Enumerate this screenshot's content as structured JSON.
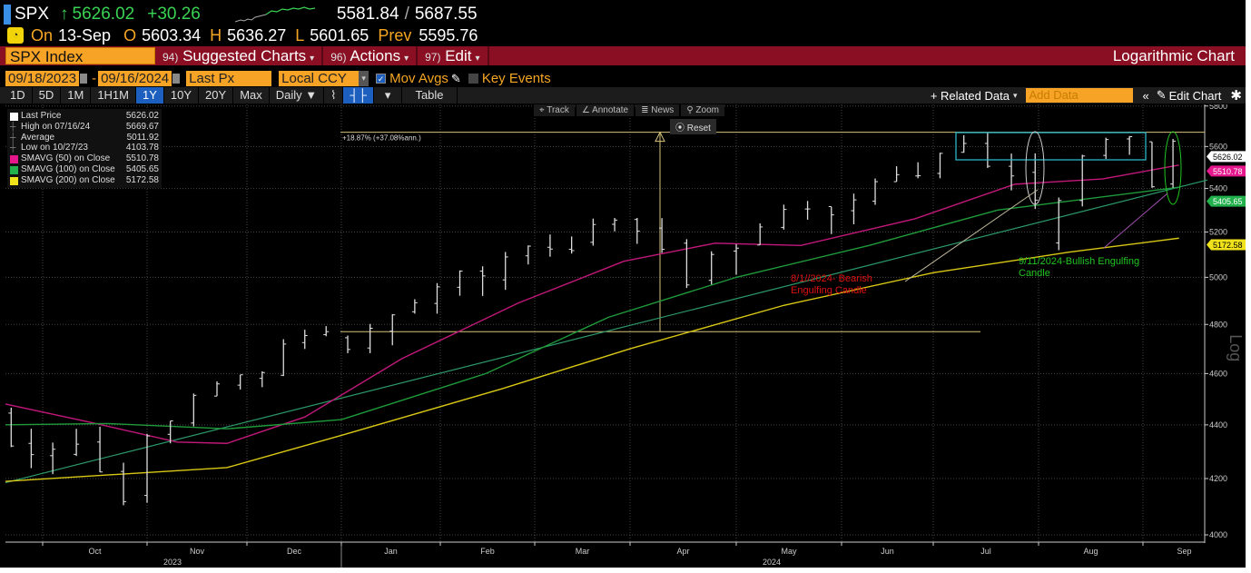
{
  "quote": {
    "symbol": "SPX",
    "last": "5626.02",
    "arrow": "↑",
    "change": "+30.26",
    "range_low": "5581.84",
    "range_sep": "/",
    "range_high": "5687.55",
    "on_label": "On",
    "date": "13-Sep",
    "open_label": "O",
    "open": "5603.34",
    "high_label": "H",
    "high": "5636.27",
    "low_label": "L",
    "low": "5601.65",
    "prev_label": "Prev",
    "prev": "5595.76"
  },
  "menubar": {
    "ticker": "SPX Index",
    "items": [
      {
        "num": "94)",
        "label": "Suggested Charts"
      },
      {
        "num": "96)",
        "label": "Actions"
      },
      {
        "num": "97)",
        "label": "Edit"
      }
    ],
    "title": "Logarithmic Chart"
  },
  "params": {
    "start": "09/18/2023",
    "dash": "-",
    "end": "09/16/2024",
    "field": "Last Px",
    "currency": "Local CCY",
    "mov_avgs": "Mov Avgs",
    "key_events": "Key Events"
  },
  "toolbar": {
    "periods": [
      "1D",
      "5D",
      "1M",
      "1H1M",
      "1Y",
      "10Y",
      "20Y",
      "Max"
    ],
    "selected": "1Y",
    "frequency": "Daily ▼",
    "table": "Table",
    "related": "+ Related Data",
    "add_data_placeholder": "Add Data",
    "edit_chart": "Edit Chart"
  },
  "chart_controls": {
    "track": "Track",
    "annotate": "Annotate",
    "news": "News",
    "zoom": "Zoom",
    "reset": "Reset"
  },
  "legend": [
    {
      "label": "Last Price",
      "value": "5626.02",
      "color": "#ffffff"
    },
    {
      "label": "High on 07/16/24",
      "value": "5669.67",
      "color": ""
    },
    {
      "label": "Average",
      "value": "5011.92",
      "color": ""
    },
    {
      "label": "Low on 10/27/23",
      "value": "4103.78",
      "color": ""
    },
    {
      "label": "SMAVG (50)  on Close",
      "value": "5510.78",
      "color": "#e6178c"
    },
    {
      "label": "SMAVG (100)  on Close",
      "value": "5405.65",
      "color": "#22b14c"
    },
    {
      "label": "SMAVG (200)  on Close",
      "value": "5172.58",
      "color": "#f0e21b"
    }
  ],
  "chart_data": {
    "type": "ohlc",
    "scale": "log",
    "ylim": [
      4000,
      5800
    ],
    "yticks": [
      4000,
      4200,
      4400,
      4600,
      4800,
      5000,
      5200,
      5400,
      5600,
      5800
    ],
    "axis_label": "Log",
    "months": [
      "Oct",
      "Nov",
      "Dec",
      "Jan",
      "Feb",
      "Mar",
      "Apr",
      "May",
      "Jun",
      "Jul",
      "Aug",
      "Sep"
    ],
    "years": [
      "2023",
      "2024"
    ],
    "grid": true,
    "bars_weekly": [
      [
        "2023-09-20",
        4445,
        4466,
        4316,
        4320
      ],
      [
        "2023-09-27",
        4330,
        4385,
        4238,
        4288
      ],
      [
        "2023-10-04",
        4284,
        4333,
        4216,
        4308
      ],
      [
        "2023-10-11",
        4289,
        4385,
        4283,
        4327
      ],
      [
        "2023-10-18",
        4335,
        4393,
        4223,
        4224
      ],
      [
        "2023-10-25",
        4226,
        4258,
        4104,
        4117
      ],
      [
        "2023-11-01",
        4139,
        4366,
        4113,
        4358
      ],
      [
        "2023-11-08",
        4364,
        4415,
        4330,
        4415
      ],
      [
        "2023-11-15",
        4407,
        4521,
        4394,
        4514
      ],
      [
        "2023-11-22",
        4511,
        4569,
        4511,
        4559
      ],
      [
        "2023-11-29",
        4554,
        4595,
        4537,
        4595
      ],
      [
        "2023-12-06",
        4581,
        4609,
        4546,
        4604
      ],
      [
        "2023-12-13",
        4593,
        4739,
        4590,
        4719
      ],
      [
        "2023-12-20",
        4725,
        4778,
        4699,
        4754
      ],
      [
        "2023-12-27",
        4758,
        4793,
        4751,
        4770
      ],
      [
        "2024-01-03",
        4745,
        4754,
        4682,
        4697
      ],
      [
        "2024-01-10",
        4703,
        4802,
        4682,
        4784
      ],
      [
        "2024-01-17",
        4772,
        4843,
        4714,
        4840
      ],
      [
        "2024-01-24",
        4853,
        4906,
        4845,
        4891
      ],
      [
        "2024-01-31",
        4888,
        4975,
        4845,
        4959
      ],
      [
        "2024-02-07",
        4957,
        5030,
        4921,
        5027
      ],
      [
        "2024-02-14",
        5027,
        5048,
        4920,
        5006
      ],
      [
        "2024-02-21",
        4989,
        5111,
        4946,
        5089
      ],
      [
        "2024-02-28",
        5094,
        5140,
        5056,
        5137
      ],
      [
        "2024-03-06",
        5132,
        5189,
        5090,
        5124
      ],
      [
        "2024-03-13",
        5123,
        5180,
        5104,
        5117
      ],
      [
        "2024-03-20",
        5154,
        5261,
        5139,
        5234
      ],
      [
        "2024-03-27",
        5235,
        5264,
        5203,
        5254
      ],
      [
        "2024-04-03",
        5257,
        5264,
        5147,
        5204
      ],
      [
        "2024-04-10",
        5218,
        5263,
        5107,
        5123
      ],
      [
        "2024-04-17",
        5150,
        5168,
        4954,
        4967
      ],
      [
        "2024-04-24",
        4987,
        5114,
        4969,
        5100
      ],
      [
        "2024-05-01",
        5115,
        5146,
        5011,
        5128
      ],
      [
        "2024-05-08",
        5142,
        5239,
        5142,
        5223
      ],
      [
        "2024-05-15",
        5221,
        5325,
        5211,
        5303
      ],
      [
        "2024-05-22",
        5305,
        5342,
        5256,
        5305
      ],
      [
        "2024-05-29",
        5316,
        5315,
        5191,
        5278
      ],
      [
        "2024-06-05",
        5297,
        5376,
        5235,
        5347
      ],
      [
        "2024-06-12",
        5341,
        5447,
        5324,
        5432
      ],
      [
        "2024-06-19",
        5432,
        5505,
        5432,
        5465
      ],
      [
        "2024-06-26",
        5459,
        5524,
        5448,
        5460
      ],
      [
        "2024-07-03",
        5471,
        5570,
        5448,
        5567
      ],
      [
        "2024-07-10",
        5572,
        5655,
        5570,
        5615
      ],
      [
        "2024-07-17",
        5615,
        5670,
        5497,
        5505
      ],
      [
        "2024-07-24",
        5505,
        5566,
        5391,
        5459
      ],
      [
        "2024-07-31",
        5476,
        5567,
        5305,
        5346
      ],
      [
        "2024-08-07",
        5151,
        5358,
        5119,
        5344
      ],
      [
        "2024-08-14",
        5344,
        5560,
        5317,
        5554
      ],
      [
        "2024-08-21",
        5557,
        5643,
        5540,
        5634
      ],
      [
        "2024-08-28",
        5637,
        5651,
        5560,
        5648
      ],
      [
        "2024-09-04",
        5623,
        5623,
        5403,
        5408
      ],
      [
        "2024-09-11",
        5421,
        5637,
        5403,
        5626
      ]
    ],
    "series": [
      {
        "name": "SMAVG (50)  on Close",
        "color": "#c2187a",
        "points": [
          [
            "2023-09-18",
            4480
          ],
          [
            "2023-10-15",
            4410
          ],
          [
            "2023-11-10",
            4335
          ],
          [
            "2023-11-25",
            4330
          ],
          [
            "2023-12-20",
            4430
          ],
          [
            "2024-01-20",
            4660
          ],
          [
            "2024-02-25",
            4890
          ],
          [
            "2024-03-30",
            5070
          ],
          [
            "2024-04-25",
            5150
          ],
          [
            "2024-05-20",
            5140
          ],
          [
            "2024-06-25",
            5260
          ],
          [
            "2024-07-25",
            5420
          ],
          [
            "2024-08-20",
            5445
          ],
          [
            "2024-09-13",
            5510.78
          ]
        ]
      },
      {
        "name": "SMAVG (100)  on Close",
        "color": "#1f9a3a",
        "points": [
          [
            "2023-09-18",
            4400
          ],
          [
            "2023-10-20",
            4405
          ],
          [
            "2023-11-25",
            4385
          ],
          [
            "2024-01-01",
            4420
          ],
          [
            "2024-02-15",
            4600
          ],
          [
            "2024-03-25",
            4830
          ],
          [
            "2024-05-01",
            5000
          ],
          [
            "2024-06-10",
            5140
          ],
          [
            "2024-07-20",
            5300
          ],
          [
            "2024-09-13",
            5405.65
          ]
        ]
      },
      {
        "name": "SMAVG (200)  on Close",
        "color": "#d9c814",
        "points": [
          [
            "2023-09-18",
            4190
          ],
          [
            "2023-11-25",
            4240
          ],
          [
            "2024-01-01",
            4360
          ],
          [
            "2024-02-20",
            4540
          ],
          [
            "2024-04-01",
            4700
          ],
          [
            "2024-05-15",
            4880
          ],
          [
            "2024-07-01",
            5020
          ],
          [
            "2024-08-10",
            5110
          ],
          [
            "2024-09-13",
            5172.58
          ]
        ]
      }
    ],
    "price_labels": [
      {
        "value": "5626.02",
        "color": "#ffffff"
      },
      {
        "value": "5510.78",
        "color": "#e6178c"
      },
      {
        "value": "5405.65",
        "color": "#22b14c"
      },
      {
        "value": "5172.58",
        "color": "#f0e21b"
      }
    ],
    "annotations": {
      "change_text": "+18.87% (+37.08%ann.)",
      "bearish_text": [
        "8/1//2024- Bearish",
        "Engulfing Candle"
      ],
      "bullish_text": [
        "9/11/2024-Bullish Engulfing",
        "Candle"
      ],
      "high_level": 5669.67,
      "base_level": 4770,
      "trendline": [
        [
          "2023-09-18",
          4185
        ],
        [
          "2024-09-13",
          5440
        ]
      ],
      "colors": {
        "measure": "#d8c27a",
        "box": "#2bb5c8",
        "bearish": "#e01010",
        "bullish": "#22c422"
      }
    }
  }
}
